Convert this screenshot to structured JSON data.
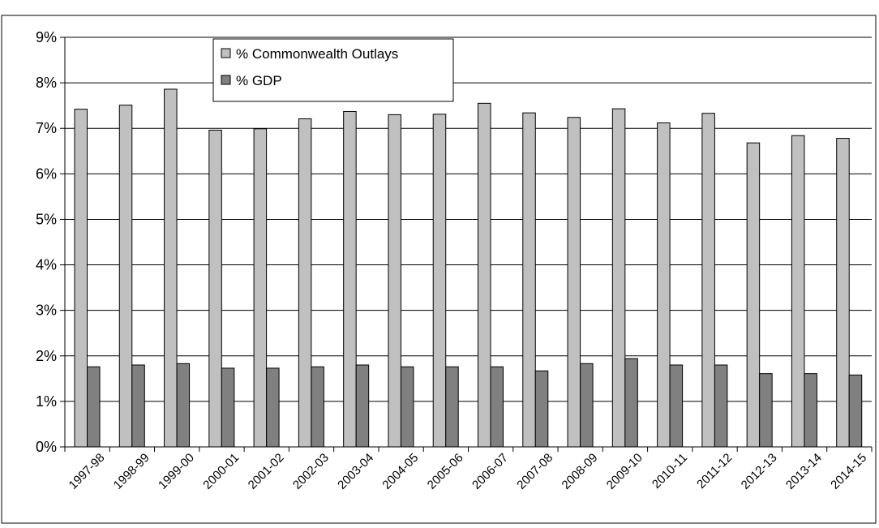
{
  "page": {
    "title": ""
  },
  "chart_data": {
    "type": "bar",
    "title": "",
    "xlabel": "",
    "ylabel": "",
    "ylim": [
      0,
      9
    ],
    "y_unit": "%",
    "y_ticks": [
      "0%",
      "1%",
      "2%",
      "3%",
      "4%",
      "5%",
      "6%",
      "7%",
      "8%",
      "9%"
    ],
    "grid": true,
    "legend_position": "top-center",
    "categories": [
      "1997-98",
      "1998-99",
      "1999-00",
      "2000-01",
      "2001-02",
      "2002-03",
      "2003-04",
      "2004-05",
      "2005-06",
      "2006-07",
      "2007-08",
      "2008-09",
      "2009-10",
      "2010-11",
      "2011-12",
      "2012-13",
      "2013-14",
      "2014-15"
    ],
    "series": [
      {
        "name": "% Commonwealth Outlays",
        "color": "#c0c0c0",
        "values": [
          7.42,
          7.51,
          7.86,
          6.96,
          6.99,
          7.21,
          7.37,
          7.3,
          7.31,
          7.55,
          7.34,
          7.24,
          7.43,
          7.12,
          7.33,
          6.68,
          6.84,
          6.78
        ]
      },
      {
        "name": "% GDP",
        "color": "#808080",
        "values": [
          1.76,
          1.8,
          1.83,
          1.73,
          1.73,
          1.76,
          1.8,
          1.76,
          1.76,
          1.76,
          1.67,
          1.83,
          1.94,
          1.8,
          1.8,
          1.61,
          1.61,
          1.58
        ]
      }
    ]
  }
}
